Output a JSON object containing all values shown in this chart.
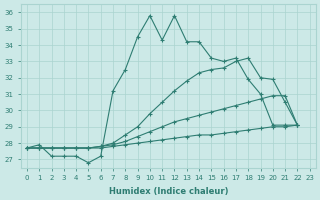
{
  "xlabel": "Humidex (Indice chaleur)",
  "background_color": "#cce9e7",
  "grid_color": "#aad4d0",
  "line_color": "#2e7d72",
  "xlim": [
    -0.5,
    23.5
  ],
  "ylim": [
    26.5,
    36.5
  ],
  "lines": [
    {
      "x": [
        0,
        1,
        2,
        3,
        4,
        5,
        6,
        7,
        8,
        9,
        10,
        11,
        12,
        13,
        14,
        15,
        16,
        17,
        18,
        19,
        20,
        21,
        22
      ],
      "y": [
        27.7,
        27.9,
        27.2,
        27.2,
        27.2,
        26.8,
        27.2,
        31.2,
        32.5,
        34.5,
        35.8,
        34.3,
        35.8,
        34.2,
        34.2,
        33.2,
        33.0,
        33.2,
        31.9,
        31.0,
        29.1,
        29.1,
        29.1
      ]
    },
    {
      "x": [
        0,
        1,
        2,
        3,
        4,
        5,
        6,
        7,
        8,
        9,
        10,
        11,
        12,
        13,
        14,
        15,
        16,
        17,
        18,
        19,
        20,
        21,
        22
      ],
      "y": [
        27.7,
        27.7,
        27.7,
        27.7,
        27.7,
        27.7,
        27.8,
        28.0,
        28.5,
        29.0,
        29.8,
        30.5,
        31.2,
        31.8,
        32.3,
        32.5,
        32.6,
        33.0,
        33.2,
        32.0,
        31.9,
        30.5,
        29.1
      ]
    },
    {
      "x": [
        0,
        1,
        2,
        3,
        4,
        5,
        6,
        7,
        8,
        9,
        10,
        11,
        12,
        13,
        14,
        15,
        16,
        17,
        18,
        19,
        20,
        21,
        22
      ],
      "y": [
        27.7,
        27.7,
        27.7,
        27.7,
        27.7,
        27.7,
        27.8,
        27.9,
        28.1,
        28.4,
        28.7,
        29.0,
        29.3,
        29.5,
        29.7,
        29.9,
        30.1,
        30.3,
        30.5,
        30.7,
        30.9,
        30.9,
        29.1
      ]
    },
    {
      "x": [
        0,
        1,
        2,
        3,
        4,
        5,
        6,
        7,
        8,
        9,
        10,
        11,
        12,
        13,
        14,
        15,
        16,
        17,
        18,
        19,
        20,
        21,
        22
      ],
      "y": [
        27.7,
        27.7,
        27.7,
        27.7,
        27.7,
        27.7,
        27.7,
        27.8,
        27.9,
        28.0,
        28.1,
        28.2,
        28.3,
        28.4,
        28.5,
        28.5,
        28.6,
        28.7,
        28.8,
        28.9,
        29.0,
        29.0,
        29.1
      ]
    }
  ]
}
